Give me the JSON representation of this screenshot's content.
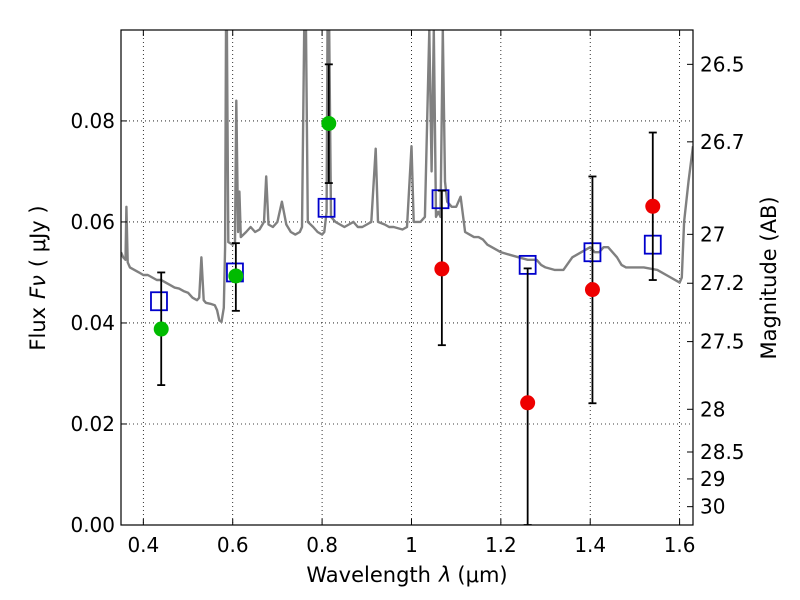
{
  "chart_data": {
    "type": "scatter",
    "title": "",
    "xlabel": "Wavelength",
    "xlabel_symbol": "λ",
    "xlabel_unit": "(μm)",
    "ylabel": "Flux",
    "ylabel_symbol": "Fν",
    "ylabel_unit": "( μJy )",
    "y2label": "Magnitude (AB)",
    "xlim": [
      0.35,
      1.63
    ],
    "ylim": [
      0.0,
      0.098
    ],
    "grid": true,
    "x_ticks": [
      0.4,
      0.6,
      0.8,
      1.0,
      1.2,
      1.4,
      1.6
    ],
    "x_tick_labels": [
      "0.4",
      "0.6",
      "0.8",
      "1",
      "1.2",
      "1.4",
      "1.6"
    ],
    "y_ticks": [
      0.0,
      0.02,
      0.04,
      0.06,
      0.08
    ],
    "y_tick_labels": [
      "0.00",
      "0.02",
      "0.04",
      "0.06",
      "0.08"
    ],
    "y2_tick_labels": [
      "26.5",
      "26.7",
      "27",
      "27.2",
      "27.5",
      "28",
      "28.5",
      "29",
      "30"
    ],
    "y2_tick_mags": [
      26.5,
      26.7,
      27.0,
      27.2,
      27.5,
      28.0,
      28.5,
      29.0,
      30.0
    ],
    "colors": {
      "spectrum": "#808080",
      "green": "#00bb00",
      "red": "#ee0000",
      "model": "#0000cc",
      "errorbar": "#000000"
    },
    "series": [
      {
        "name": "template spectrum",
        "kind": "line",
        "points": [
          [
            0.35,
            0.054
          ],
          [
            0.355,
            0.053
          ],
          [
            0.36,
            0.0525
          ],
          [
            0.362,
            0.063
          ],
          [
            0.365,
            0.052
          ],
          [
            0.37,
            0.051
          ],
          [
            0.38,
            0.0505
          ],
          [
            0.39,
            0.05
          ],
          [
            0.4,
            0.0495
          ],
          [
            0.41,
            0.0495
          ],
          [
            0.42,
            0.049
          ],
          [
            0.43,
            0.0485
          ],
          [
            0.44,
            0.0485
          ],
          [
            0.45,
            0.048
          ],
          [
            0.46,
            0.0475
          ],
          [
            0.47,
            0.047
          ],
          [
            0.48,
            0.0468
          ],
          [
            0.49,
            0.0463
          ],
          [
            0.5,
            0.046
          ],
          [
            0.51,
            0.045
          ],
          [
            0.52,
            0.0445
          ],
          [
            0.525,
            0.045
          ],
          [
            0.53,
            0.053
          ],
          [
            0.535,
            0.0445
          ],
          [
            0.54,
            0.044
          ],
          [
            0.55,
            0.0438
          ],
          [
            0.56,
            0.0435
          ],
          [
            0.565,
            0.0425
          ],
          [
            0.57,
            0.0405
          ],
          [
            0.575,
            0.0402
          ],
          [
            0.58,
            0.043
          ],
          [
            0.583,
            0.055
          ],
          [
            0.585,
            0.098
          ],
          [
            0.587,
            0.098
          ],
          [
            0.59,
            0.056
          ],
          [
            0.6,
            0.0555
          ],
          [
            0.605,
            0.056
          ],
          [
            0.608,
            0.084
          ],
          [
            0.612,
            0.058
          ],
          [
            0.615,
            0.066
          ],
          [
            0.618,
            0.057
          ],
          [
            0.63,
            0.058
          ],
          [
            0.64,
            0.059
          ],
          [
            0.65,
            0.058
          ],
          [
            0.66,
            0.0585
          ],
          [
            0.67,
            0.06
          ],
          [
            0.675,
            0.069
          ],
          [
            0.68,
            0.0595
          ],
          [
            0.69,
            0.059
          ],
          [
            0.7,
            0.06
          ],
          [
            0.71,
            0.064
          ],
          [
            0.72,
            0.0595
          ],
          [
            0.73,
            0.058
          ],
          [
            0.74,
            0.0575
          ],
          [
            0.75,
            0.058
          ],
          [
            0.755,
            0.059
          ],
          [
            0.76,
            0.098
          ],
          [
            0.764,
            0.098
          ],
          [
            0.768,
            0.06
          ],
          [
            0.78,
            0.059
          ],
          [
            0.79,
            0.058
          ],
          [
            0.8,
            0.0575
          ],
          [
            0.805,
            0.058
          ],
          [
            0.81,
            0.062
          ],
          [
            0.812,
            0.098
          ],
          [
            0.816,
            0.098
          ],
          [
            0.82,
            0.061
          ],
          [
            0.83,
            0.06
          ],
          [
            0.84,
            0.0595
          ],
          [
            0.85,
            0.059
          ],
          [
            0.86,
            0.0595
          ],
          [
            0.87,
            0.06
          ],
          [
            0.88,
            0.059
          ],
          [
            0.89,
            0.059
          ],
          [
            0.9,
            0.0595
          ],
          [
            0.91,
            0.06
          ],
          [
            0.92,
            0.0745
          ],
          [
            0.925,
            0.06
          ],
          [
            0.94,
            0.0595
          ],
          [
            0.95,
            0.059
          ],
          [
            0.96,
            0.059
          ],
          [
            0.98,
            0.0585
          ],
          [
            0.99,
            0.059
          ],
          [
            1.0,
            0.075
          ],
          [
            1.005,
            0.06
          ],
          [
            1.02,
            0.06
          ],
          [
            1.03,
            0.061
          ],
          [
            1.04,
            0.098
          ],
          [
            1.045,
            0.07
          ],
          [
            1.05,
            0.098
          ],
          [
            1.055,
            0.061
          ],
          [
            1.06,
            0.062
          ],
          [
            1.065,
            0.061
          ],
          [
            1.07,
            0.098
          ],
          [
            1.075,
            0.068
          ],
          [
            1.08,
            0.064
          ],
          [
            1.09,
            0.063
          ],
          [
            1.1,
            0.063
          ],
          [
            1.11,
            0.065
          ],
          [
            1.12,
            0.058
          ],
          [
            1.13,
            0.0575
          ],
          [
            1.14,
            0.057
          ],
          [
            1.15,
            0.057
          ],
          [
            1.16,
            0.0565
          ],
          [
            1.17,
            0.0555
          ],
          [
            1.18,
            0.055
          ],
          [
            1.2,
            0.054
          ],
          [
            1.22,
            0.0535
          ],
          [
            1.24,
            0.053
          ],
          [
            1.26,
            0.0525
          ],
          [
            1.28,
            0.0525
          ],
          [
            1.29,
            0.0515
          ],
          [
            1.3,
            0.051
          ],
          [
            1.32,
            0.0505
          ],
          [
            1.34,
            0.0505
          ],
          [
            1.36,
            0.053
          ],
          [
            1.38,
            0.054
          ],
          [
            1.4,
            0.055
          ],
          [
            1.41,
            0.054
          ],
          [
            1.42,
            0.054
          ],
          [
            1.43,
            0.055
          ],
          [
            1.44,
            0.055
          ],
          [
            1.46,
            0.053
          ],
          [
            1.47,
            0.0515
          ],
          [
            1.48,
            0.051
          ],
          [
            1.5,
            0.051
          ],
          [
            1.52,
            0.051
          ],
          [
            1.55,
            0.0505
          ],
          [
            1.58,
            0.049
          ],
          [
            1.6,
            0.048
          ],
          [
            1.605,
            0.049
          ],
          [
            1.61,
            0.06
          ],
          [
            1.62,
            0.068
          ],
          [
            1.63,
            0.075
          ]
        ]
      },
      {
        "name": "observed flux (green)",
        "kind": "points",
        "color_key": "green",
        "points": [
          {
            "x": 0.44,
            "y": 0.0388,
            "ylo": 0.0277,
            "yhi": 0.05
          },
          {
            "x": 0.607,
            "y": 0.0493,
            "ylo": 0.0424,
            "yhi": 0.0558
          },
          {
            "x": 0.815,
            "y": 0.0795,
            "ylo": 0.0677,
            "yhi": 0.0912
          }
        ]
      },
      {
        "name": "observed flux (red)",
        "kind": "points",
        "color_key": "red",
        "points": [
          {
            "x": 1.068,
            "y": 0.0507,
            "ylo": 0.0356,
            "yhi": 0.0662
          },
          {
            "x": 1.26,
            "y": 0.0242,
            "ylo": 0.0,
            "yhi": 0.0508
          },
          {
            "x": 1.405,
            "y": 0.0466,
            "ylo": 0.0241,
            "yhi": 0.069
          },
          {
            "x": 1.54,
            "y": 0.0631,
            "ylo": 0.0485,
            "yhi": 0.0777
          }
        ]
      },
      {
        "name": "model band flux",
        "kind": "squares",
        "color_key": "model",
        "points": [
          {
            "x": 0.435,
            "y": 0.0443
          },
          {
            "x": 0.605,
            "y": 0.05
          },
          {
            "x": 0.81,
            "y": 0.0628
          },
          {
            "x": 1.065,
            "y": 0.0645
          },
          {
            "x": 1.26,
            "y": 0.0515
          },
          {
            "x": 1.405,
            "y": 0.054
          },
          {
            "x": 1.54,
            "y": 0.0555
          }
        ]
      }
    ]
  }
}
